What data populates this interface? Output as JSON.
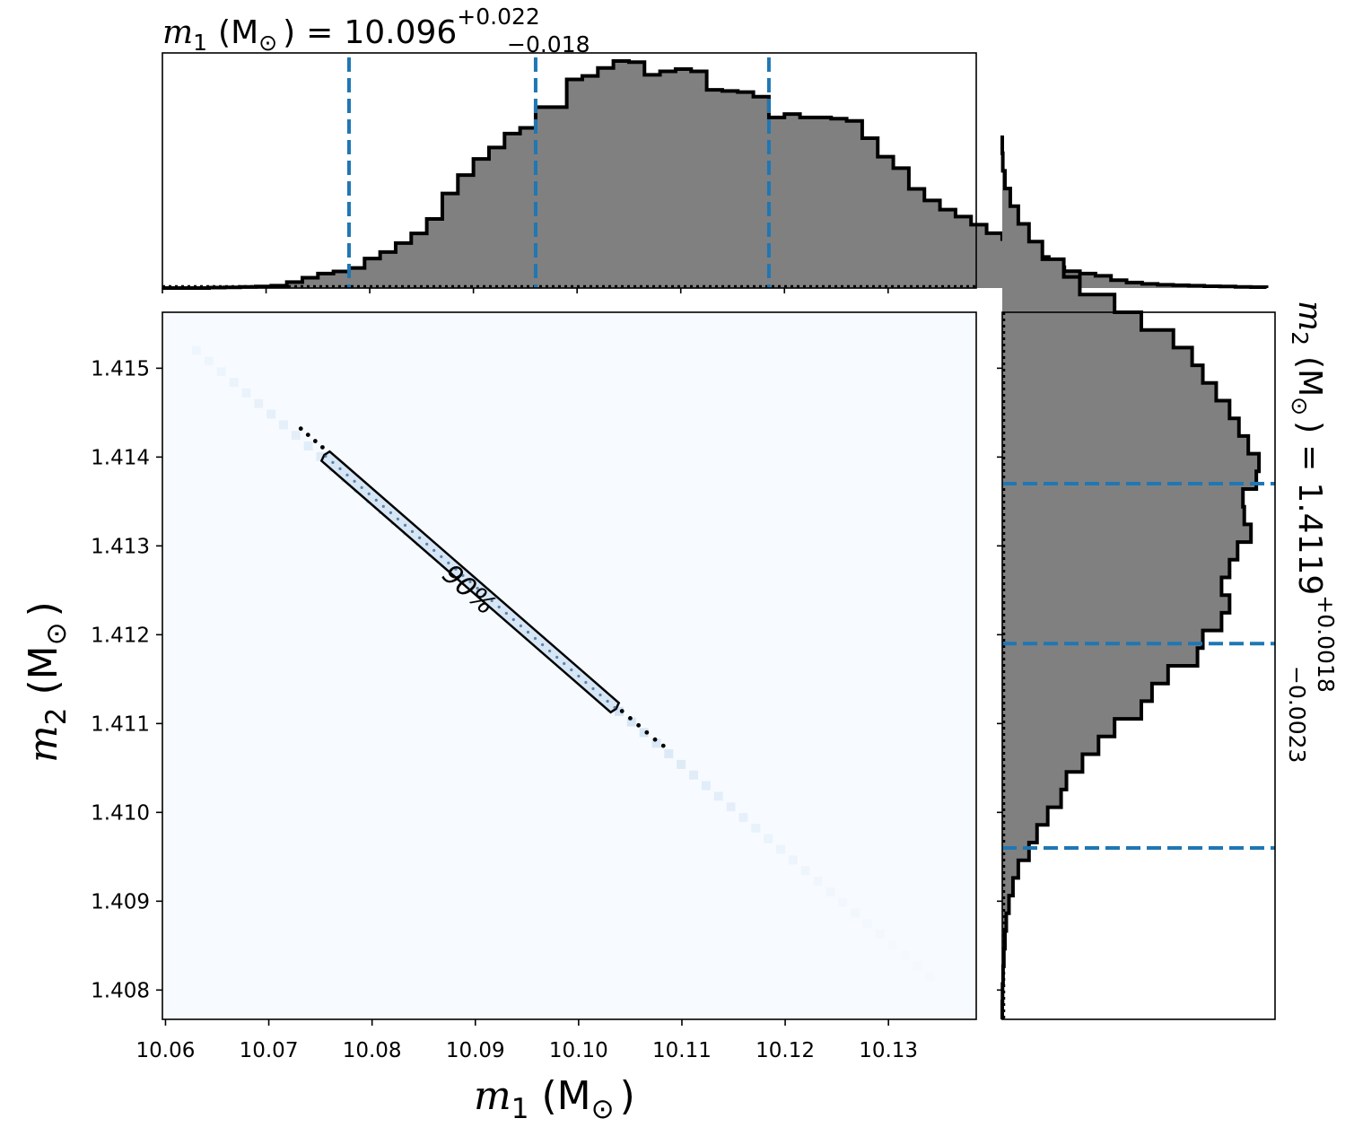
{
  "chart_data": [
    {
      "type": "histogram",
      "panel": "top-marginal",
      "title": {
        "symbol": "m",
        "subscript": "1",
        "unit": "(M",
        "unit_sub": "⊙",
        "unit_close": ")",
        "equals": "=",
        "value": "10.096",
        "plus": "+0.022",
        "minus": "−0.018"
      },
      "xlim": [
        10.06,
        10.1385
      ],
      "bin_edges_start": 10.06,
      "bin_width": 0.0015,
      "counts": [
        0,
        0,
        0,
        0.2,
        0.3,
        0.5,
        0.7,
        1.0,
        2.6,
        4.5,
        6.3,
        7.2,
        8.7,
        12.8,
        15.6,
        19.5,
        23.7,
        30.0,
        41.0,
        49.0,
        56.0,
        61.0,
        67.0,
        69.5,
        78.5,
        78.5,
        90.5,
        92.0,
        95.5,
        98.5,
        98.0,
        92.5,
        94.0,
        95.0,
        94.0,
        86.0,
        85.5,
        85.0,
        83.0,
        74.0,
        75.5,
        74.0,
        74.0,
        73.5,
        72.5,
        65.0,
        57.0,
        52.0,
        43.0,
        38.0,
        34.0,
        31.0,
        27.5,
        23.8,
        21.2,
        16.5,
        13.5,
        9.0,
        7.3,
        6.3,
        5.3,
        3.4,
        2.4,
        1.8,
        1.4,
        1.2,
        1.0,
        0.8,
        0.7,
        0.5,
        0.4
      ],
      "ylim": [
        0,
        102
      ],
      "quantile_lines": [
        10.078,
        10.096,
        10.1185
      ],
      "colors": {
        "fill": "#808080",
        "edge": "#000000",
        "quantile": "#1f77b4"
      }
    },
    {
      "type": "heatmap",
      "panel": "joint",
      "xlabel": {
        "symbol": "m",
        "subscript": "1",
        "unit": "(M",
        "unit_sub": "⊙",
        "unit_close": ")"
      },
      "ylabel": {
        "symbol": "m",
        "subscript": "2",
        "unit": "(M",
        "unit_sub": "⊙",
        "unit_close": ")"
      },
      "xlim": [
        10.0597,
        10.1385
      ],
      "ylim": [
        1.40767,
        1.41563
      ],
      "xticks": [
        10.06,
        10.07,
        10.08,
        10.09,
        10.1,
        10.11,
        10.12,
        10.13
      ],
      "xticklabels": [
        "10.06",
        "10.07",
        "10.08",
        "10.09",
        "10.10",
        "10.11",
        "10.12",
        "10.13"
      ],
      "yticks": [
        1.408,
        1.409,
        1.41,
        1.411,
        1.412,
        1.413,
        1.414,
        1.415
      ],
      "yticklabels": [
        "1.408",
        "1.409",
        "1.410",
        "1.411",
        "1.412",
        "1.413",
        "1.414",
        "1.415"
      ],
      "correlation_line": {
        "x": [
          10.063,
          10.134
        ],
        "y": [
          1.4152,
          1.40815
        ]
      },
      "contour": {
        "label": "90%",
        "endpoints_x": [
          10.0755,
          10.1035
        ],
        "endpoints_y": [
          1.41401,
          1.41118
        ],
        "half_width_m2": 7e-05
      },
      "scatter_outliers": {
        "x": [
          10.0731,
          10.0738,
          10.0745,
          10.0752,
          10.1042,
          10.105,
          10.1058,
          10.1066,
          10.1074,
          10.1082
        ],
        "y": [
          1.41432,
          1.41425,
          1.41418,
          1.41411,
          1.41114,
          1.41106,
          1.41098,
          1.4109,
          1.41082,
          1.41075
        ]
      },
      "colors": {
        "background": "#f7fbff",
        "density": "#c6dbef",
        "contour": "#000000"
      }
    },
    {
      "type": "histogram",
      "orientation": "horizontal",
      "panel": "right-marginal",
      "title": {
        "symbol": "m",
        "subscript": "2",
        "unit": "(M",
        "unit_sub": "⊙",
        "unit_close": ")",
        "equals": "=",
        "value": "1.4119",
        "plus": "+0.0018",
        "minus": "−0.0023"
      },
      "ylim": [
        1.40767,
        1.41563
      ],
      "bin_edges_start": 1.40767,
      "bin_width": 0.000199,
      "counts": [
        0,
        0.1,
        0.3,
        0.6,
        1.0,
        1.5,
        2.5,
        4.0,
        6.0,
        10.0,
        13.0,
        17.0,
        22.0,
        24.0,
        30.0,
        36.0,
        42.0,
        52.0,
        56.0,
        62.0,
        73.0,
        75.0,
        82.0,
        85.0,
        82.0,
        85.0,
        88.0,
        93.0,
        90.5,
        90.0,
        95.0,
        96.0,
        92.0,
        88.5,
        85.0,
        80.0,
        75.0,
        71.0,
        64.0,
        52.0,
        42.0,
        29.0,
        23.0,
        15.0,
        10.0,
        6.0,
        3.0,
        1.0,
        0.2,
        0
      ],
      "xlim": [
        0,
        102
      ],
      "quantile_lines": [
        1.4096,
        1.4119,
        1.4137
      ],
      "colors": {
        "fill": "#808080",
        "edge": "#000000",
        "quantile": "#1f77b4"
      }
    }
  ]
}
